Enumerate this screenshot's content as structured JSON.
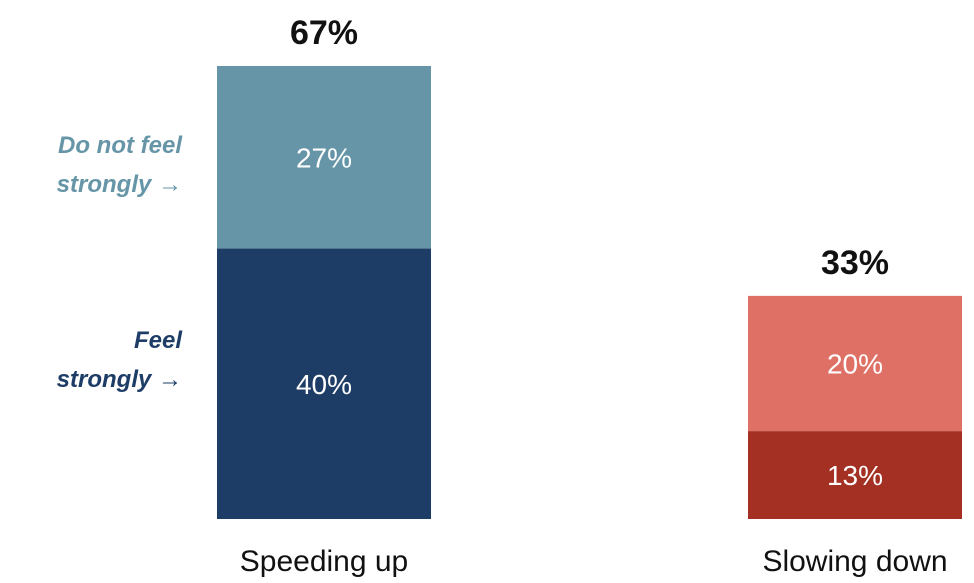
{
  "chart_data": {
    "type": "bar",
    "stacked": true,
    "categories": [
      "Speeding up",
      "Slowing down"
    ],
    "totals": [
      "67%",
      "33%"
    ],
    "ylim": [
      0,
      67
    ],
    "stack_labels": [
      "Feel strongly",
      "Do not feel strongly"
    ],
    "bars": [
      {
        "category": "Speeding up",
        "total": 67,
        "segments": [
          {
            "value": 40,
            "label": "40%",
            "color": "#1e3d66"
          },
          {
            "value": 27,
            "label": "27%",
            "color": "#6595a7"
          }
        ]
      },
      {
        "category": "Slowing down",
        "total": 33,
        "segments": [
          {
            "value": 13,
            "label": "13%",
            "color": "#a33022"
          },
          {
            "value": 20,
            "label": "20%",
            "color": "#de7066"
          }
        ]
      }
    ]
  },
  "side_labels": {
    "do_not_feel_strongly": {
      "lines": [
        "Do not feel",
        "strongly →"
      ],
      "color": "#6595a7"
    },
    "feel_strongly": {
      "lines": [
        "Feel",
        "strongly →"
      ],
      "color": "#1e3d66"
    }
  }
}
